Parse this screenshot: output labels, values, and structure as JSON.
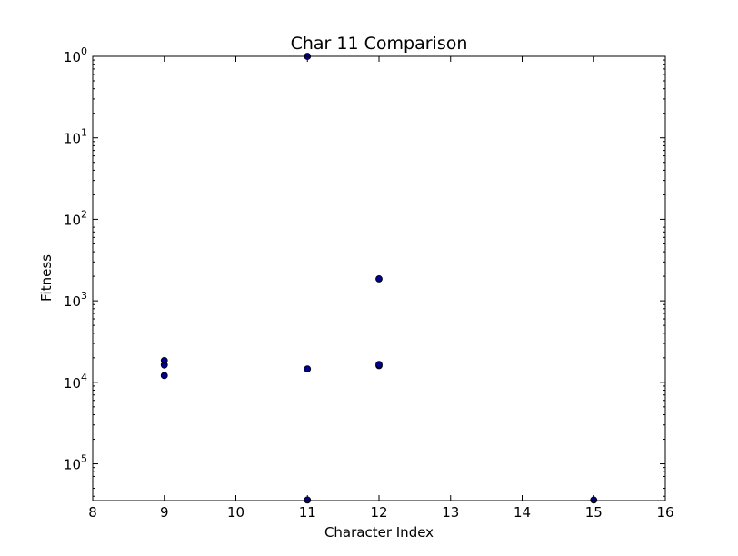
{
  "chart_data": {
    "type": "scatter",
    "title": "Char 11 Comparison",
    "xlabel": "Character Index",
    "ylabel": "Fitness",
    "xlim": [
      8,
      16
    ],
    "ylim": [
      1,
      3.54e-06
    ],
    "yscale": "log",
    "y_inverted": true,
    "grid": false,
    "x_ticks": [
      8,
      9,
      10,
      11,
      12,
      13,
      14,
      15,
      16
    ],
    "y_ticks": [
      {
        "base": "10",
        "exp": "0",
        "value": 1
      },
      {
        "base": "10",
        "exp": "1",
        "value": 0.1
      },
      {
        "base": "10",
        "exp": "2",
        "value": 0.01
      },
      {
        "base": "10",
        "exp": "3",
        "value": 0.001
      },
      {
        "base": "10",
        "exp": "4",
        "value": 0.0001
      },
      {
        "base": "10",
        "exp": "5",
        "value": 1e-05
      }
    ],
    "marker_color": "#00008b",
    "marker_edge": "#000000",
    "points": [
      {
        "x": 9,
        "y": 0.000121
      },
      {
        "x": 9,
        "y": 0.000163
      },
      {
        "x": 9,
        "y": 0.000185
      },
      {
        "x": 11,
        "y": 1.0
      },
      {
        "x": 11,
        "y": 0.000146
      },
      {
        "x": 11,
        "y": 3.6e-06
      },
      {
        "x": 12,
        "y": 0.00186
      },
      {
        "x": 12,
        "y": 0.00016
      },
      {
        "x": 12,
        "y": 0.000166
      },
      {
        "x": 15,
        "y": 3.6e-06
      }
    ]
  }
}
